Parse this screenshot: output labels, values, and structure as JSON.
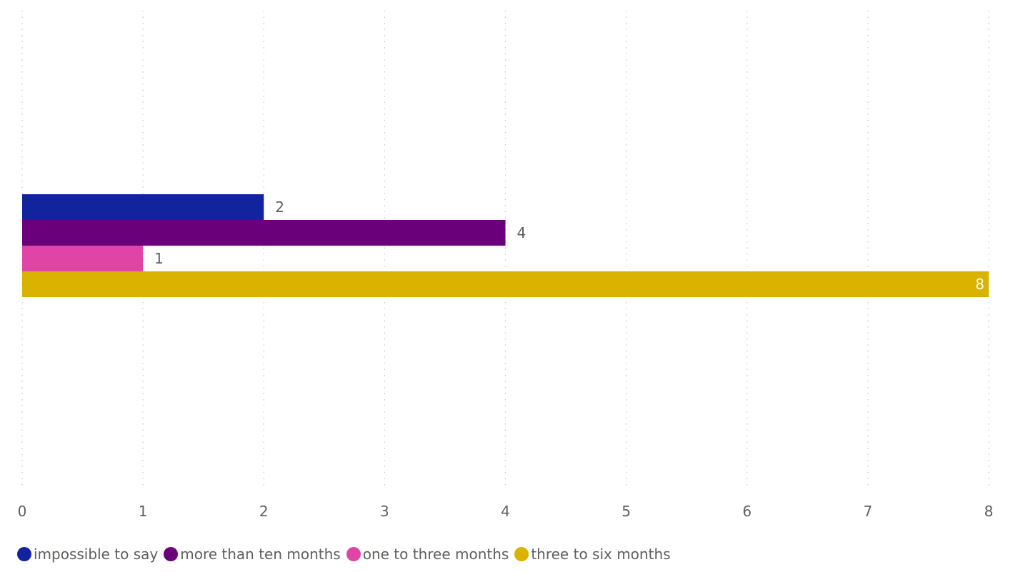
{
  "chart_data": {
    "type": "bar",
    "orientation": "horizontal",
    "grouping": "clustered",
    "categories": [
      ""
    ],
    "series": [
      {
        "name": "impossible to say",
        "values": [
          2
        ],
        "color": "#12239E"
      },
      {
        "name": "more than ten months",
        "values": [
          4
        ],
        "color": "#6B007B"
      },
      {
        "name": "one to three months",
        "values": [
          1
        ],
        "color": "#E044A7"
      },
      {
        "name": "three to six months",
        "values": [
          8
        ],
        "color": "#D9B300"
      }
    ],
    "data_labels": [
      "2",
      "4",
      "1",
      "8"
    ],
    "x_ticks": [
      "0",
      "1",
      "2",
      "3",
      "4",
      "5",
      "6",
      "7",
      "8"
    ],
    "xlim": [
      0,
      8
    ],
    "grid": "vertical dotted",
    "legend_position": "bottom-left",
    "title": "",
    "xlabel": "",
    "ylabel": ""
  }
}
